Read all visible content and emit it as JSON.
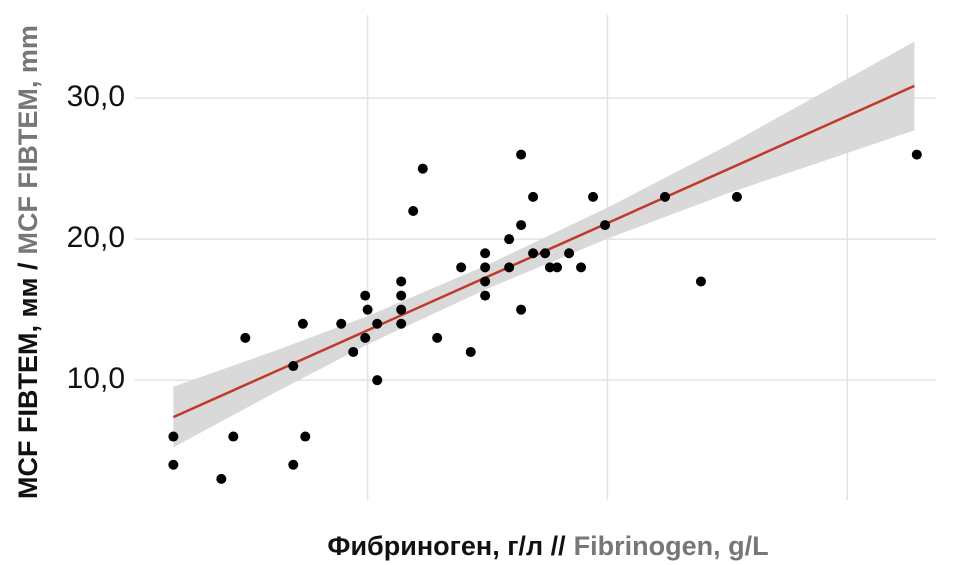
{
  "chart_data": {
    "type": "scatter",
    "xlabel": {
      "ru": "Фибриноген, г/л //",
      "en": "Fibrinogen, g/L"
    },
    "ylabel": {
      "ru": "MCF FIBTEM, мм /",
      "en": "MCF FIBTEM, mm"
    },
    "x": [
      1.19,
      1.19,
      1.39,
      1.44,
      1.49,
      1.69,
      1.69,
      1.73,
      1.74,
      1.89,
      1.94,
      1.99,
      1.99,
      2.0,
      2.04,
      2.04,
      2.14,
      2.14,
      2.14,
      2.14,
      2.19,
      2.23,
      2.29,
      2.39,
      2.43,
      2.49,
      2.49,
      2.49,
      2.49,
      2.59,
      2.59,
      2.64,
      2.64,
      2.64,
      2.69,
      2.69,
      2.74,
      2.76,
      2.79,
      2.84,
      2.89,
      2.94,
      2.99,
      3.24,
      3.39,
      3.54,
      4.29
    ],
    "values": [
      6,
      4,
      3,
      6,
      13,
      11,
      4,
      14,
      6,
      14,
      12,
      13,
      16,
      15,
      14,
      10,
      17,
      16,
      15,
      14,
      22,
      25,
      13,
      18,
      12,
      19,
      18,
      17,
      16,
      20,
      18,
      26,
      21,
      15,
      23,
      19,
      19,
      18,
      18,
      19,
      18,
      23,
      21,
      23,
      17,
      23,
      26
    ],
    "color": "#000000",
    "fit": {
      "x": [
        1.19,
        4.28
      ],
      "values": [
        7.38,
        30.87
      ],
      "color": "#c0392b"
    },
    "band": {
      "x": [
        1.19,
        1.6,
        2.0,
        2.5,
        3.0,
        3.5,
        4.28
      ],
      "lower": [
        5.23,
        9.0,
        12.54,
        16.49,
        20.04,
        23.24,
        27.72
      ],
      "upper": [
        9.53,
        12.0,
        14.54,
        18.19,
        22.24,
        26.64,
        34.02
      ],
      "color": "#d9d9d9"
    },
    "xlim": [
      1.03,
      4.37
    ],
    "ylim": [
      1.5,
      35.9
    ],
    "xticks": [
      2,
      3,
      4
    ],
    "yticks": [
      {
        "value": 10,
        "label": "10,0"
      },
      {
        "value": 20,
        "label": "20,0"
      },
      {
        "value": 30,
        "label": "30,0"
      }
    ],
    "grid": true
  }
}
